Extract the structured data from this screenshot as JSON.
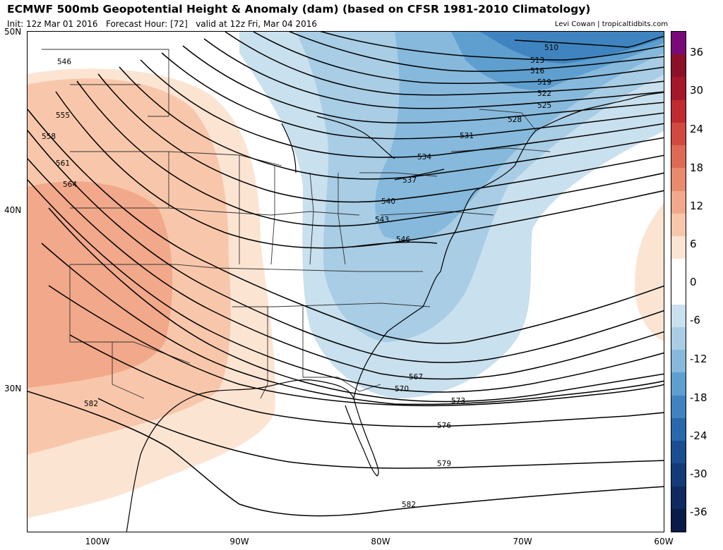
{
  "title": "ECMWF 500mb Geopotential Height & Anomaly (dam) (based on CFSR 1981-2010 Climatology)",
  "init": "Init: 12z Mar 01 2016",
  "forecast_hour": "Forecast Hour: [72]",
  "valid": "valid at 12z Fri, Mar 04 2016",
  "credit": "Levi Cowan | tropicaltidbits.com",
  "lat_labels": [
    "50N",
    "40N",
    "30N"
  ],
  "lon_labels": [
    "100W",
    "90W",
    "80W",
    "70W",
    "60W"
  ],
  "colorbar": {
    "labels": [
      "36",
      "30",
      "24",
      "18",
      "12",
      "6",
      "0",
      "-6",
      "-12",
      "-18",
      "-24",
      "-30",
      "-36"
    ],
    "colors": [
      "#7a0a7a",
      "#8b1028",
      "#a5182a",
      "#c12a30",
      "#d2493f",
      "#de6a55",
      "#e9896e",
      "#f2a88a",
      "#f8c7ab",
      "#fce4d3",
      "#ffffff",
      "#ffffff",
      "#c9e0ee",
      "#a8cde5",
      "#86b9dc",
      "#5f9fcf",
      "#3f84c0",
      "#2868ab",
      "#1b4e91",
      "#143a78",
      "#0e2a60",
      "#091b48"
    ]
  },
  "contours": [
    "510",
    "513",
    "516",
    "519",
    "522",
    "525",
    "528",
    "531",
    "534",
    "537",
    "540",
    "543",
    "546",
    "546",
    "555",
    "558",
    "561",
    "564",
    "567",
    "570",
    "573",
    "576",
    "579",
    "582",
    "582"
  ]
}
